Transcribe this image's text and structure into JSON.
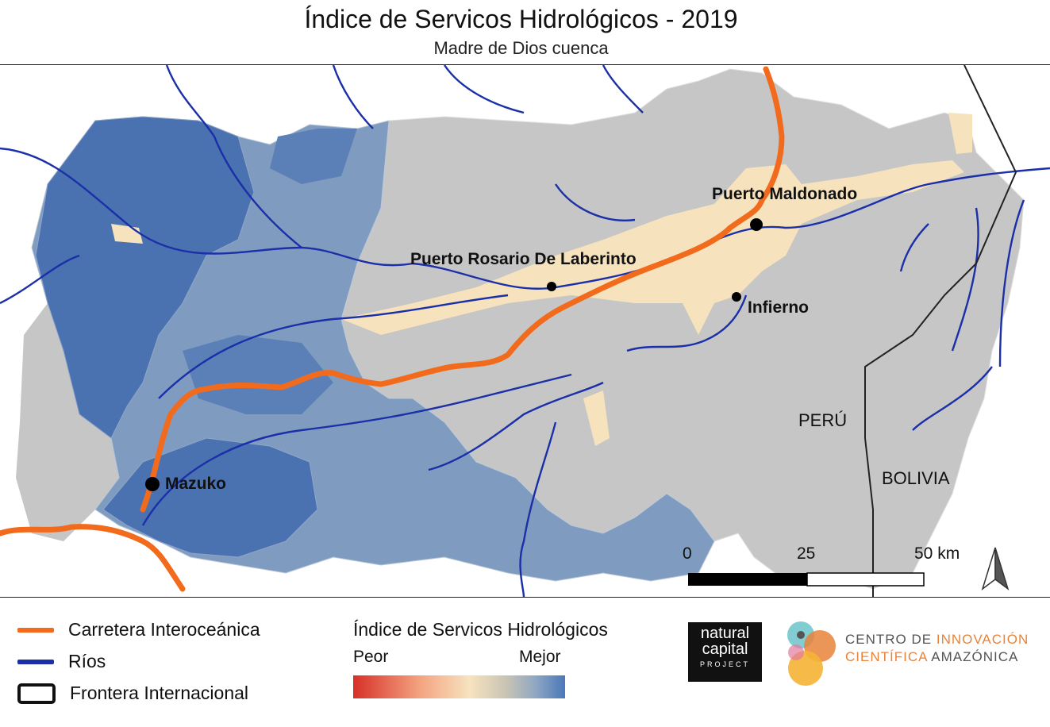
{
  "header": {
    "title": "Índice de Servicos Hidrológicos - 2019",
    "subtitle": "Madre de Dios cuenca"
  },
  "map": {
    "places": [
      {
        "name": "Puerto Maldonado",
        "size": "large"
      },
      {
        "name": "Puerto Rosario De Laberinto",
        "size": "small"
      },
      {
        "name": "Infierno",
        "size": "small"
      },
      {
        "name": "Mazuko",
        "size": "large"
      }
    ],
    "countries": [
      "PERÚ",
      "BOLIVIA"
    ],
    "scale_bar": {
      "labels": [
        "0",
        "25",
        "50 km"
      ]
    },
    "north_arrow": "north-arrow-icon",
    "colors": {
      "road": "#f26b1d",
      "rivers": "#1a2fa8",
      "border": "#222222",
      "index_low": "#d73027",
      "index_mid": "#f7e3bf",
      "index_high": "#4a78b8",
      "neutral": "#c8c8c8"
    }
  },
  "legend": {
    "road": "Carretera Interoceánica",
    "rivers": "Ríos",
    "border": "Frontera Internacional",
    "gradient_title": "Índice de Servicos Hidrológicos",
    "gradient_low": "Peor",
    "gradient_high": "Mejor"
  },
  "logos": {
    "ncp_line1": "natural",
    "ncp_line2": "capital",
    "ncp_line3": "PROJECT",
    "cinca_line1a": "CENTRO DE ",
    "cinca_line1b": "INNOVACIÓN",
    "cinca_line2a": "CIENTÍFICA ",
    "cinca_line2b": "AMAZÓNICA"
  }
}
